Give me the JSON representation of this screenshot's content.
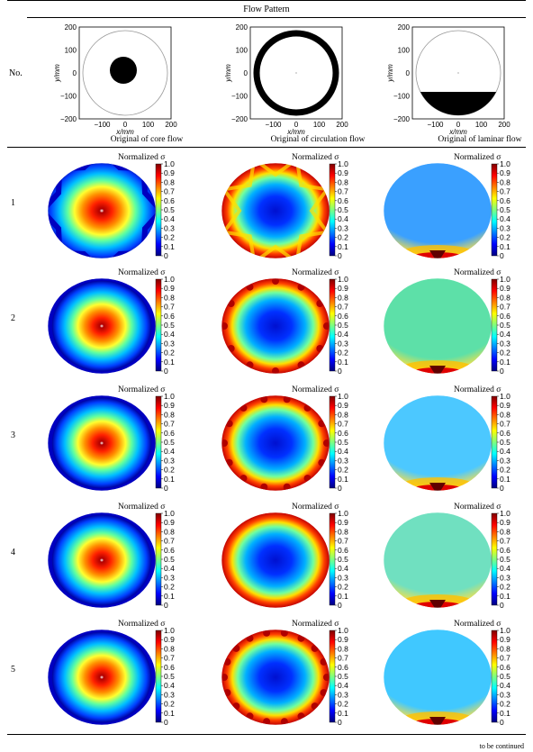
{
  "header": {
    "title": "Flow Pattern",
    "row_label": "No."
  },
  "originals": [
    {
      "caption": "Original of core flow",
      "type": "core"
    },
    {
      "caption": "Original of circulation flow",
      "type": "circulation"
    },
    {
      "caption": "Original of laminar flow",
      "type": "laminar"
    }
  ],
  "original_axes": {
    "xlabel": "x/mm",
    "ylabel": "y/mm",
    "yticks": [
      "200",
      "100",
      "0",
      "−100",
      "−200"
    ],
    "xticks": [
      "−100",
      "0",
      "100",
      "200"
    ]
  },
  "colorbar": {
    "title": "Normalized σ",
    "ticks": [
      "1.0",
      "0.9",
      "0.8",
      "0.7",
      "0.6",
      "0.5",
      "0.4",
      "0.3",
      "0.2",
      "0.1",
      "0"
    ],
    "colors": [
      "#7f0000",
      "#ff0000",
      "#ff7f00",
      "#ffff00",
      "#7fff7f",
      "#00ffff",
      "#007fff",
      "#0000ff",
      "#00007f"
    ]
  },
  "rows": [
    {
      "no": "1"
    },
    {
      "no": "2"
    },
    {
      "no": "3"
    },
    {
      "no": "4"
    },
    {
      "no": "5"
    }
  ],
  "footer": {
    "note": "to be continued"
  }
}
